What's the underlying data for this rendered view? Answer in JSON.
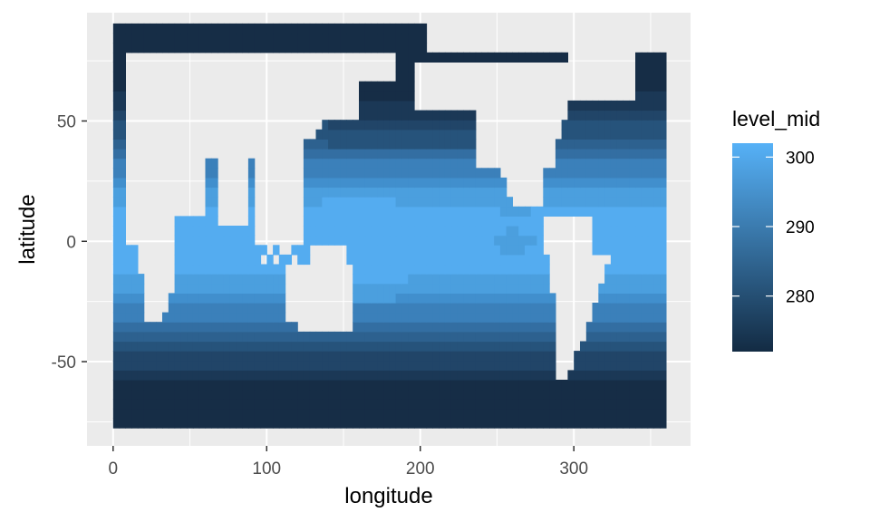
{
  "chart_data": {
    "type": "heatmap",
    "subtype": "filled-contour",
    "title": "",
    "xlabel": "longitude",
    "ylabel": "latitude",
    "xlim": [
      -17,
      376
    ],
    "ylim": [
      -85,
      95
    ],
    "x_ticks": [
      0,
      100,
      200,
      300
    ],
    "x_tick_labels": [
      "0",
      "100",
      "200",
      "300"
    ],
    "y_ticks": [
      -50,
      0,
      50
    ],
    "y_tick_labels": [
      "-50",
      "0",
      "50"
    ],
    "grid": true,
    "legend": {
      "title": "level_mid",
      "position": "right",
      "type": "colorbar",
      "range": [
        272,
        302
      ],
      "ticks": [
        280,
        290,
        300
      ],
      "tick_labels": [
        "280",
        "290",
        "300"
      ],
      "color_low": "#132b43",
      "color_high": "#56b1f7"
    },
    "colors": {
      "panel_background": "#ebebeb",
      "grid_major": "#ffffff",
      "land": "#ebebeb"
    },
    "levels": [
      {
        "level_mid": 273.5,
        "color": "#162d46"
      },
      {
        "level_mid": 276.5,
        "color": "#1b3856"
      },
      {
        "level_mid": 279.5,
        "color": "#214568"
      },
      {
        "level_mid": 282.5,
        "color": "#26537b"
      },
      {
        "level_mid": 285.5,
        "color": "#2d618f"
      },
      {
        "level_mid": 288.5,
        "color": "#336ea2"
      },
      {
        "level_mid": 291.5,
        "color": "#3b80ba"
      },
      {
        "level_mid": 294.5,
        "color": "#418fcd"
      },
      {
        "level_mid": 297.5,
        "color": "#4b9fde"
      },
      {
        "level_mid": 300.5,
        "color": "#54acf0"
      }
    ],
    "grid_extent": {
      "lon": [
        0,
        357.5
      ],
      "lat": [
        -77.5,
        89.5
      ]
    }
  }
}
